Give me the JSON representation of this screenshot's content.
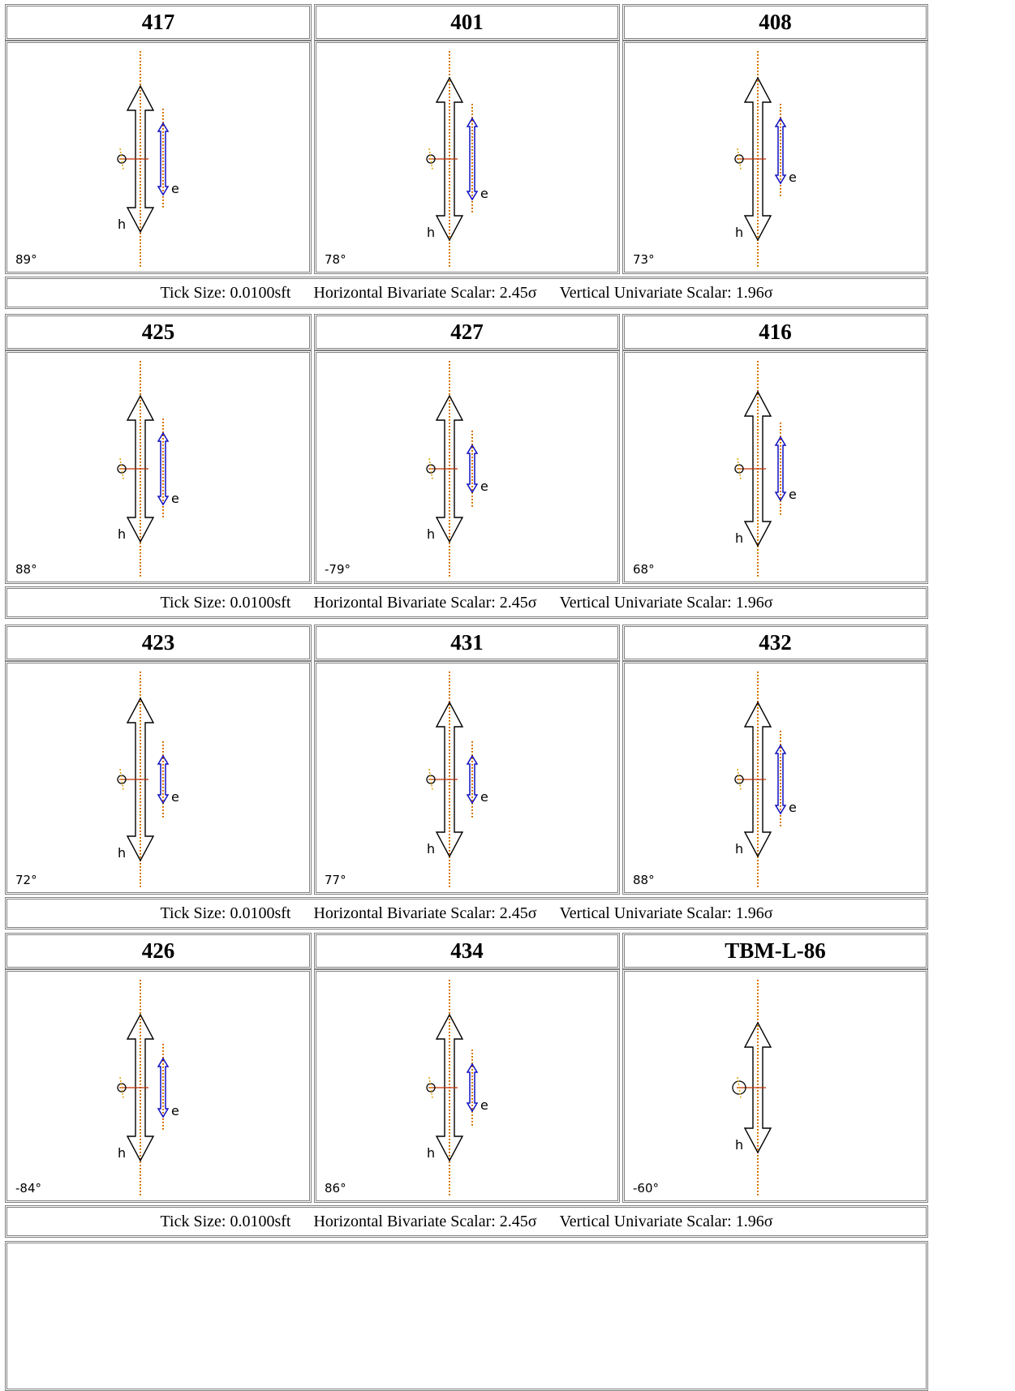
{
  "caption": {
    "tick": "Tick Size: 0.0100sft",
    "horizontal": "Horizontal Bivariate Scalar: 2.45σ",
    "vertical": "Vertical Univariate Scalar: 1.96σ"
  },
  "labels": {
    "h": "h",
    "e": "e"
  },
  "groups": [
    {
      "stations": [
        {
          "name": "417",
          "angle": "89°",
          "h_len": 180,
          "e_len": 88,
          "e_offset": 0
        },
        {
          "name": "401",
          "angle": "78°",
          "h_len": 200,
          "e_len": 100,
          "e_offset": 0
        },
        {
          "name": "408",
          "angle": "73°",
          "h_len": 200,
          "e_len": 80,
          "e_offset": -10
        }
      ]
    },
    {
      "stations": [
        {
          "name": "425",
          "angle": "88°",
          "h_len": 180,
          "e_len": 88,
          "e_offset": 0
        },
        {
          "name": "427",
          "angle": "-79°",
          "h_len": 180,
          "e_len": 58,
          "e_offset": 0
        },
        {
          "name": "416",
          "angle": "68°",
          "h_len": 190,
          "e_len": 78,
          "e_offset": 0
        }
      ]
    },
    {
      "stations": [
        {
          "name": "423",
          "angle": "72°",
          "h_len": 200,
          "e_len": 58,
          "e_offset": 0
        },
        {
          "name": "431",
          "angle": "77°",
          "h_len": 190,
          "e_len": 58,
          "e_offset": 0
        },
        {
          "name": "432",
          "angle": "88°",
          "h_len": 190,
          "e_len": 84,
          "e_offset": 0
        }
      ]
    },
    {
      "stations": [
        {
          "name": "426",
          "angle": "-84°",
          "h_len": 180,
          "e_len": 72,
          "e_offset": 0
        },
        {
          "name": "434",
          "angle": "86°",
          "h_len": 180,
          "e_len": 58,
          "e_offset": 0
        },
        {
          "name": "TBM-L-86",
          "angle": "-60°",
          "h_len": 160,
          "e_len": 0,
          "e_offset": 0
        }
      ]
    }
  ]
}
